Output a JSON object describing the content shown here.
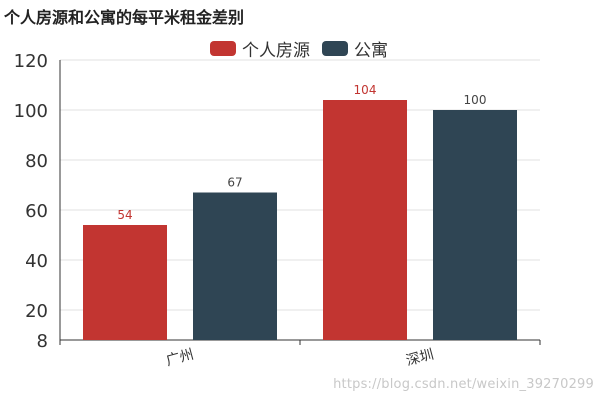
{
  "chart_data": {
    "type": "bar",
    "title": "个人房源和公寓的每平米租金差别",
    "categories": [
      "广州",
      "深圳"
    ],
    "series": [
      {
        "name": "个人房源",
        "values": [
          54,
          104
        ],
        "color": "#c23531"
      },
      {
        "name": "公寓",
        "values": [
          67,
          100
        ],
        "color": "#2f4554"
      }
    ],
    "y_ticks": [
      "8",
      "20",
      "40",
      "60",
      "80",
      "100",
      "120"
    ],
    "ylim": [
      8,
      120
    ],
    "grid": true,
    "legend_position": "top-center"
  },
  "watermark": "https://blog.csdn.net/weixin_39270299"
}
